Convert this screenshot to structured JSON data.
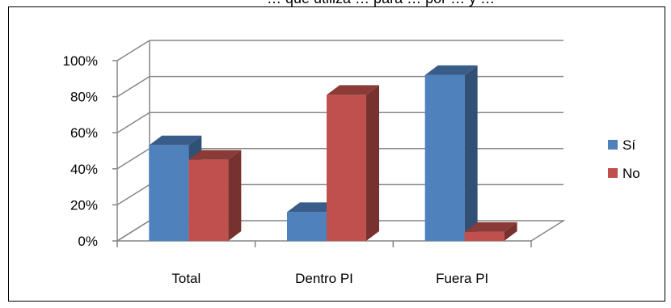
{
  "title": "… que utiliza … para … por … y …",
  "chart_data": {
    "type": "bar",
    "title": "",
    "xlabel": "",
    "ylabel": "",
    "categories": [
      "Total",
      "Dentro PI",
      "Fuera PI"
    ],
    "series": [
      {
        "name": "Sí",
        "values": [
          0.53,
          0.16,
          0.92
        ],
        "color": "#4f81bd"
      },
      {
        "name": "No",
        "values": [
          0.45,
          0.81,
          0.05
        ],
        "color": "#c0504d"
      }
    ],
    "yticks": [
      "0%",
      "20%",
      "40%",
      "60%",
      "80%",
      "100%"
    ],
    "ylim": [
      0,
      1
    ],
    "grid": true,
    "legend_position": "right",
    "three_d": true
  }
}
